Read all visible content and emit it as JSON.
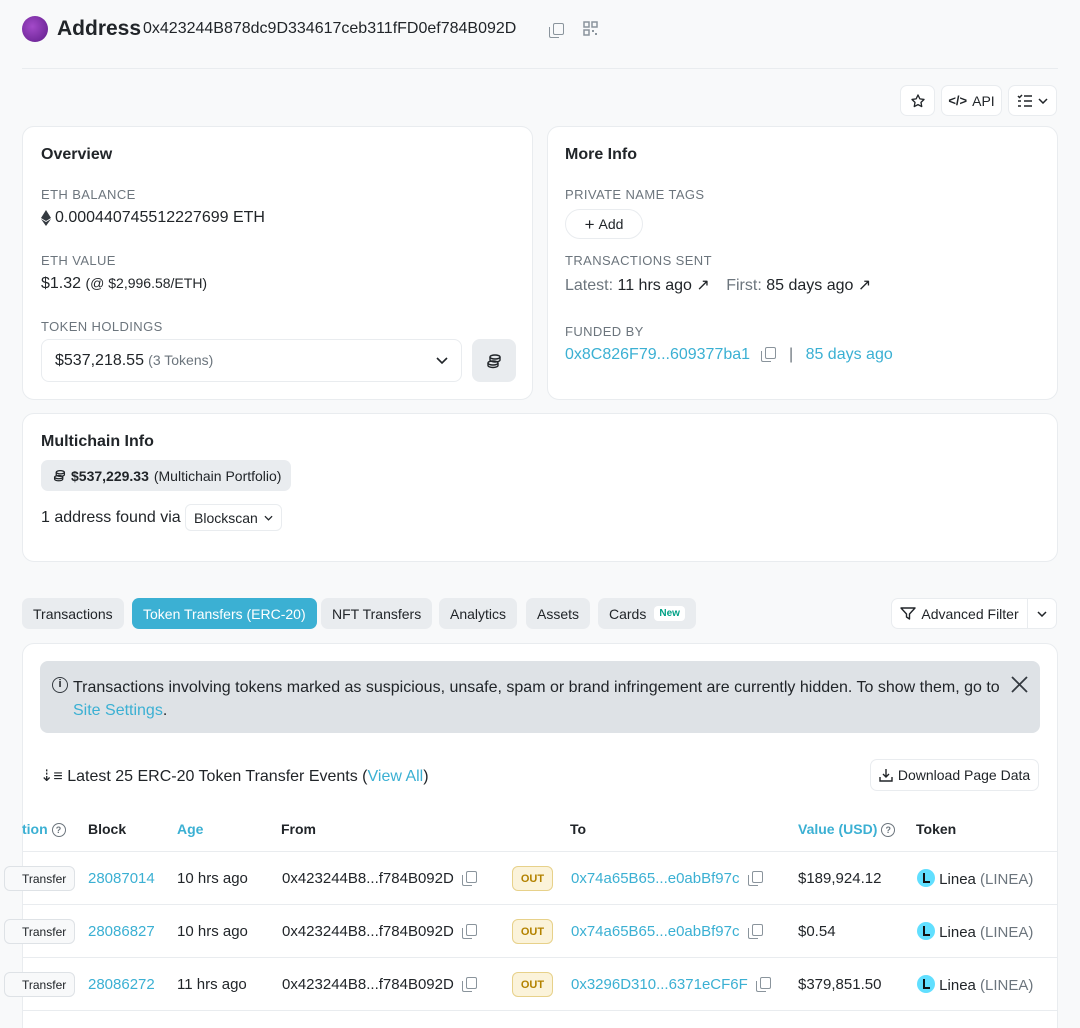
{
  "header": {
    "title": "Address",
    "address": "0x423244B878dc9D334617ceb311fFD0ef784B092D"
  },
  "toolbar": {
    "api_label": "API"
  },
  "overview": {
    "title": "Overview",
    "eth_balance_label": "ETH BALANCE",
    "eth_balance_value": "0.000440745512227699 ETH",
    "eth_value_label": "ETH VALUE",
    "eth_value_usd": "$1.32",
    "eth_value_rate": "(@ $2,996.58/ETH)",
    "token_holdings_label": "TOKEN HOLDINGS",
    "token_holdings_value": "$537,218.55",
    "token_holdings_count": "(3 Tokens)"
  },
  "more_info": {
    "title": "More Info",
    "private_tags_label": "PRIVATE NAME TAGS",
    "add_label": "Add",
    "tx_sent_label": "TRANSACTIONS SENT",
    "latest_label": "Latest:",
    "latest_value": "11 hrs ago",
    "first_label": "First:",
    "first_value": "85 days ago",
    "funded_by_label": "FUNDED BY",
    "funded_by_address": "0x8C826F79...609377ba1",
    "funded_by_separator": "|",
    "funded_by_age": "85 days ago"
  },
  "multichain": {
    "title": "Multichain Info",
    "portfolio_value": "$537,229.33",
    "portfolio_label": "(Multichain Portfolio)",
    "found_text": "1 address found via",
    "dropdown_label": "Blockscan"
  },
  "tabs": [
    {
      "label": "Transactions",
      "active": false
    },
    {
      "label": "Token Transfers (ERC-20)",
      "active": true
    },
    {
      "label": "NFT Transfers",
      "active": false
    },
    {
      "label": "Analytics",
      "active": false
    },
    {
      "label": "Assets",
      "active": false
    },
    {
      "label": "Cards",
      "active": false,
      "badge": "New"
    }
  ],
  "advanced_filter_label": "Advanced Filter",
  "alert": {
    "text": "Transactions involving tokens marked as suspicious, unsafe, spam or brand infringement are currently hidden. To show them, go to",
    "link": "Site Settings",
    "end": "."
  },
  "events": {
    "prefix": "Latest 25 ERC-20 Token Transfer Events (",
    "view_all": "View All",
    "suffix": ")",
    "download_label": "Download Page Data"
  },
  "table": {
    "columns": {
      "method": "tion",
      "block": "Block",
      "age": "Age",
      "from": "From",
      "to": "To",
      "value": "Value (USD)",
      "token": "Token"
    },
    "rows": [
      {
        "method": "Transfer",
        "block": "28087014",
        "age": "10 hrs ago",
        "from": "0x423244B8...f784B092D",
        "direction": "OUT",
        "to": "0x74a65B65...e0abBf97c",
        "value": "$189,924.12",
        "token_name": "Linea",
        "token_symbol": "(LINEA)"
      },
      {
        "method": "Transfer",
        "block": "28086827",
        "age": "10 hrs ago",
        "from": "0x423244B8...f784B092D",
        "direction": "OUT",
        "to": "0x74a65B65...e0abBf97c",
        "value": "$0.54",
        "token_name": "Linea",
        "token_symbol": "(LINEA)"
      },
      {
        "method": "Transfer",
        "block": "28086272",
        "age": "11 hrs ago",
        "from": "0x423244B8...f784B092D",
        "direction": "OUT",
        "to": "0x3296D310...6371eCF6F",
        "value": "$379,851.50",
        "token_name": "Linea",
        "token_symbol": "(LINEA)"
      }
    ]
  },
  "colors": {
    "accent": "#3bb0d3",
    "out_badge": "#fbf3da",
    "brand": "#0784c3"
  }
}
